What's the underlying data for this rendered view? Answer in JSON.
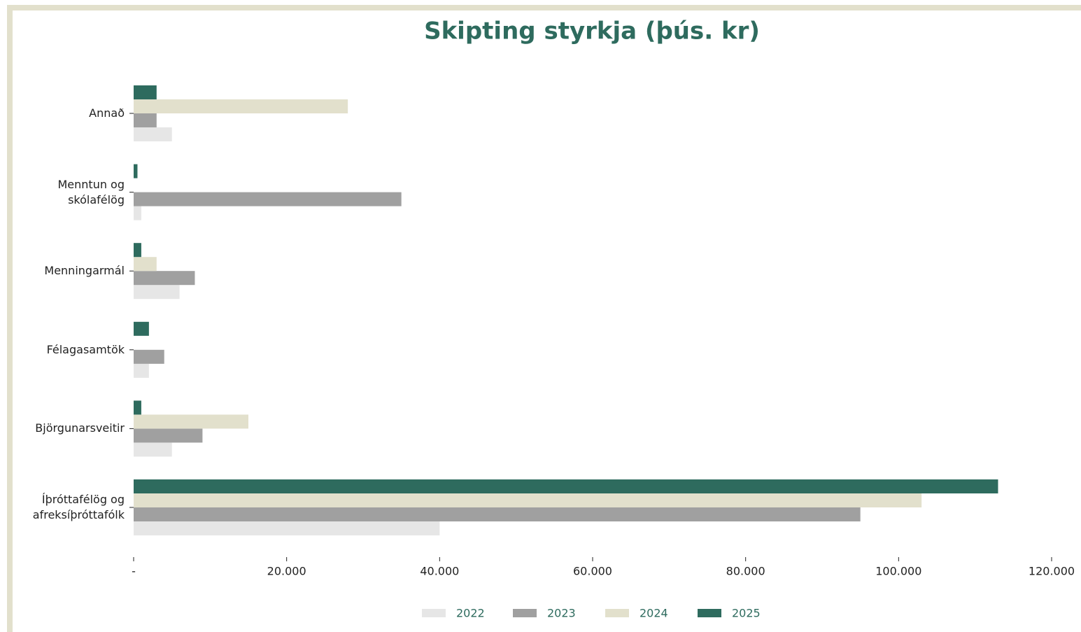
{
  "chart_data": {
    "type": "barh",
    "title": "Skipting styrkja (þús. kr)",
    "categories": [
      "Íþróttafélög og\nafreksíþróttafólk",
      "Björgunarsveitir",
      "Félagasamtök",
      "Menningarmál",
      "Menntun og\nskólafélög",
      "Annað"
    ],
    "series": [
      {
        "name": "2022",
        "color": "#e6e6e6",
        "values": [
          40000,
          5000,
          2000,
          6000,
          1000,
          5000
        ]
      },
      {
        "name": "2023",
        "color": "#a0a0a0",
        "values": [
          95000,
          9000,
          4000,
          8000,
          35000,
          3000
        ]
      },
      {
        "name": "2024",
        "color": "#e2e0cc",
        "values": [
          103000,
          15000,
          0,
          3000,
          0,
          28000
        ]
      },
      {
        "name": "2025",
        "color": "#2e6b5e",
        "values": [
          113000,
          1000,
          2000,
          1000,
          500,
          3000
        ]
      }
    ],
    "xlim": [
      0,
      120000
    ],
    "xticks": [
      {
        "value": 0,
        "label": "-"
      },
      {
        "value": 20000,
        "label": "20.000"
      },
      {
        "value": 40000,
        "label": "40.000"
      },
      {
        "value": 60000,
        "label": "60.000"
      },
      {
        "value": 80000,
        "label": "80.000"
      },
      {
        "value": 100000,
        "label": "100.000"
      },
      {
        "value": 120000,
        "label": "120.000"
      }
    ],
    "legend": "bottom"
  }
}
